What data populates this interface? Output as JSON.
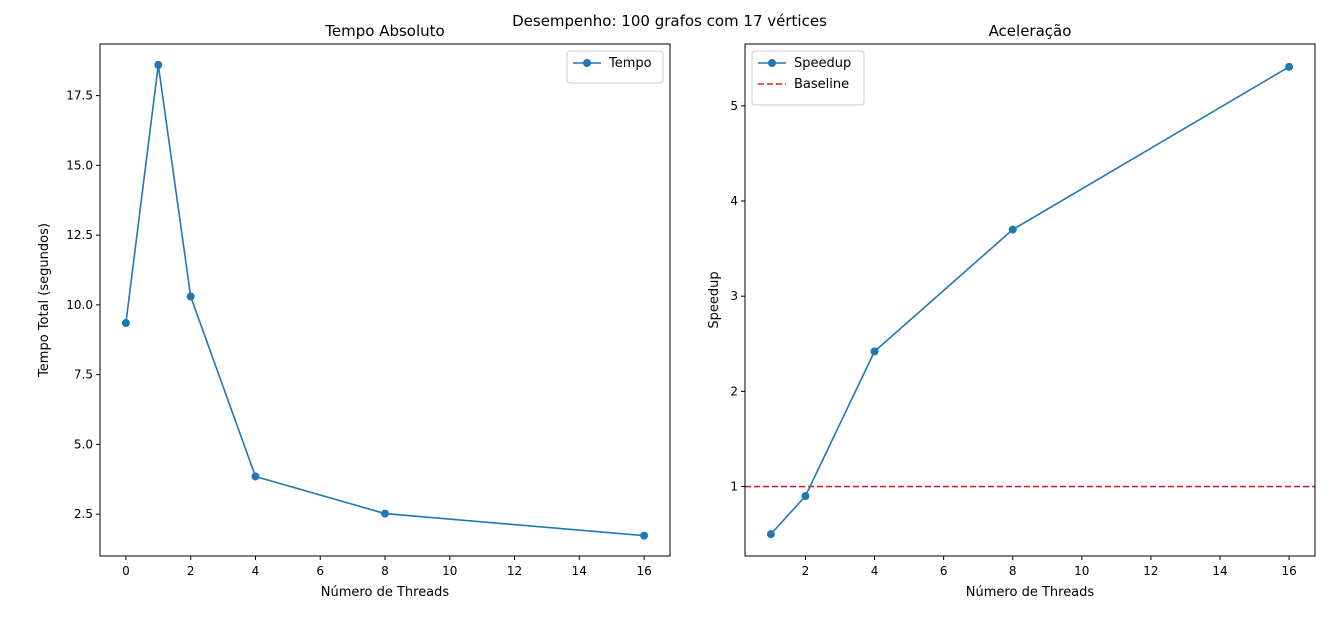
{
  "figure": {
    "suptitle": "Desempenho: 100 grafos com 17 vértices"
  },
  "colors": {
    "series": "#1f77b4",
    "baseline": "#d62728",
    "axes": "#000000",
    "legend_border": "#cccccc"
  },
  "chart_data": [
    {
      "type": "line",
      "title": "Tempo Absoluto",
      "xlabel": "Número de Threads",
      "ylabel": "Tempo Total (segundos)",
      "xlim": [
        -0.8,
        16.8
      ],
      "ylim": [
        1.0,
        19.35
      ],
      "xticks": [
        0,
        2,
        4,
        6,
        8,
        10,
        12,
        14,
        16
      ],
      "yticks": [
        2.5,
        5.0,
        7.5,
        10.0,
        12.5,
        15.0,
        17.5
      ],
      "ytick_labels": [
        "2.5",
        "5.0",
        "7.5",
        "10.0",
        "12.5",
        "15.0",
        "17.5"
      ],
      "grid": false,
      "legend_position": "upper right",
      "series": [
        {
          "name": "Tempo",
          "marker": "circle",
          "x": [
            0,
            1,
            2,
            4,
            8,
            16
          ],
          "y": [
            9.35,
            18.6,
            10.3,
            3.85,
            2.52,
            1.73
          ]
        }
      ],
      "hlines": []
    },
    {
      "type": "line",
      "title": "Aceleração",
      "xlabel": "Número de Threads",
      "ylabel": "Speedup",
      "xlim": [
        0.25,
        16.75
      ],
      "ylim": [
        0.27,
        5.65
      ],
      "xticks": [
        2,
        4,
        6,
        8,
        10,
        12,
        14,
        16
      ],
      "yticks": [
        1,
        2,
        3,
        4,
        5
      ],
      "ytick_labels": [
        "1",
        "2",
        "3",
        "4",
        "5"
      ],
      "grid": false,
      "legend_position": "upper left",
      "series": [
        {
          "name": "Speedup",
          "marker": "circle",
          "x": [
            1,
            2,
            4,
            8,
            16
          ],
          "y": [
            0.5,
            0.9,
            2.42,
            3.7,
            5.41
          ]
        }
      ],
      "hlines": [
        {
          "name": "Baseline",
          "y": 1,
          "style": "dashed"
        }
      ]
    }
  ]
}
